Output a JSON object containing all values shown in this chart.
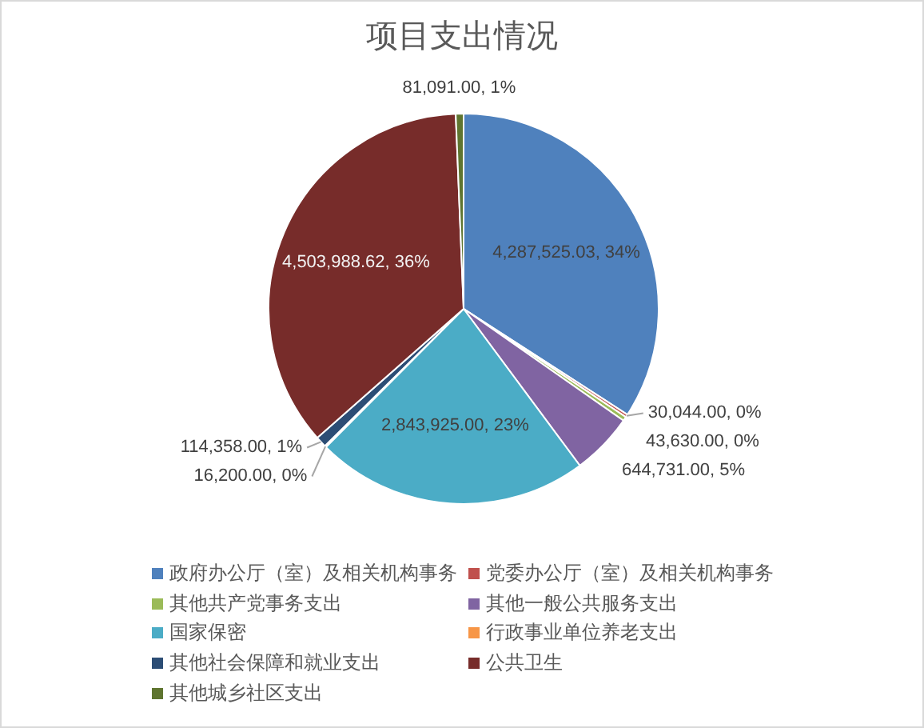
{
  "chart_data": {
    "type": "pie",
    "title": "项目支出情况",
    "categories": [
      "政府办公厅（室）及相关机构事务",
      "党委办公厅（室）及相关机构事务",
      "其他共产党事务支出",
      "其他一般公共服务支出",
      "国家保密",
      "行政事业单位养老支出",
      "其他社会保障和就业支出",
      "公共卫生",
      "其他城乡社区支出"
    ],
    "values": [
      4287525.03,
      30044,
      43630,
      644731,
      2843925,
      16200,
      114358,
      4503988.62,
      81091
    ],
    "colors": [
      "#4f81bd",
      "#c0504d",
      "#9bbb59",
      "#8064a2",
      "#4bacc6",
      "#f79646",
      "#2c4d75",
      "#772c2a",
      "#5f7530"
    ],
    "value_labels": [
      "4,287,525.03, 34%",
      "30,044.00, 0%",
      "43,630.00, 0%",
      "644,731.00, 5%",
      "2,843,925.00, 23%",
      "16,200.00, 0%",
      "114,358.00, 1%",
      "4,503,988.62, 36%",
      "81,091.00, 1%"
    ],
    "legend": "bottom"
  }
}
